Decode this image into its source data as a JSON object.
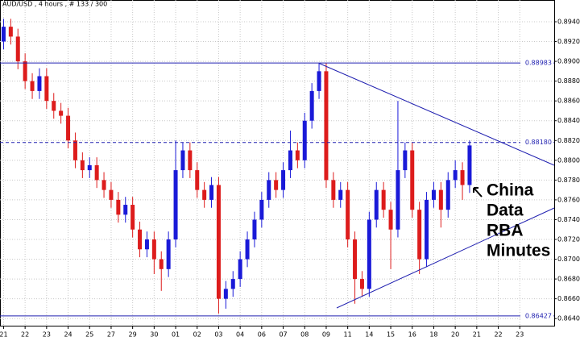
{
  "chart_data": {
    "type": "candlestick",
    "title": "AUD/USD , 4 hours , # 133 / 300",
    "categories": [
      "21",
      null,
      null,
      "22",
      null,
      null,
      "23",
      null,
      null,
      "24",
      null,
      null,
      "25",
      null,
      null,
      "27",
      null,
      null,
      "29",
      null,
      null,
      "30",
      null,
      null,
      "01",
      null,
      null,
      "02",
      null,
      null,
      "03",
      null,
      null,
      "04",
      null,
      null,
      "06",
      null,
      null,
      "07",
      null,
      null,
      "08",
      null,
      null,
      "09",
      null,
      null,
      "11",
      null,
      null,
      "14",
      null,
      null,
      "15",
      null,
      null,
      "16",
      null,
      null,
      "18",
      null,
      null,
      "20",
      null,
      null,
      "21",
      null,
      null,
      "22",
      null,
      null,
      "23",
      null,
      null
    ],
    "open": [
      0.892,
      0.8935,
      0.8925,
      0.89,
      0.888,
      0.887,
      0.8885,
      0.886,
      0.885,
      0.8845,
      0.882,
      0.88,
      0.879,
      0.8795,
      0.878,
      0.877,
      0.876,
      0.8745,
      0.8755,
      0.873,
      0.871,
      0.872,
      0.87,
      0.869,
      0.872,
      0.879,
      0.881,
      0.879,
      0.877,
      0.876,
      0.8775,
      0.866,
      0.867,
      0.868,
      0.87,
      0.872,
      0.874,
      0.876,
      0.878,
      0.877,
      0.879,
      0.881,
      0.88,
      0.884,
      0.887,
      0.889,
      0.878,
      0.876,
      0.877,
      0.872,
      0.868,
      0.867,
      0.874,
      0.877,
      0.875,
      0.873,
      0.879,
      0.881,
      0.875,
      0.87,
      0.876,
      0.877,
      0.875,
      0.878,
      0.879,
      0.8775,
      null,
      null,
      null,
      null,
      null,
      null,
      null,
      null,
      null
    ],
    "high": [
      0.8943,
      0.8943,
      0.8933,
      0.8908,
      0.8888,
      0.8893,
      0.8893,
      0.8868,
      0.8858,
      0.8853,
      0.8828,
      0.8808,
      0.8803,
      0.8803,
      0.8788,
      0.8778,
      0.8768,
      0.8763,
      0.8763,
      0.8738,
      0.8728,
      0.8728,
      0.8708,
      0.8728,
      0.882,
      0.8818,
      0.8818,
      0.8798,
      0.8778,
      0.8783,
      0.8783,
      0.8678,
      0.8688,
      0.8708,
      0.8728,
      0.8748,
      0.8768,
      0.8788,
      0.8788,
      0.8798,
      0.883,
      0.8818,
      0.8848,
      0.8878,
      0.8898,
      0.8898,
      0.8788,
      0.8778,
      0.8778,
      0.8728,
      0.8688,
      0.8748,
      0.8778,
      0.8778,
      0.8758,
      0.886,
      0.8818,
      0.8818,
      0.8758,
      0.8768,
      0.8778,
      0.8778,
      0.8788,
      0.88,
      0.8798,
      0.882,
      null,
      null,
      null,
      null,
      null,
      null,
      null,
      null,
      null
    ],
    "low": [
      0.8912,
      0.8917,
      0.8892,
      0.8872,
      0.8862,
      0.8862,
      0.8852,
      0.8842,
      0.8837,
      0.8812,
      0.8792,
      0.8782,
      0.8782,
      0.8772,
      0.8762,
      0.8752,
      0.8737,
      0.8737,
      0.8722,
      0.8702,
      0.8702,
      0.8685,
      0.8668,
      0.8682,
      0.8712,
      0.8782,
      0.8782,
      0.8762,
      0.8752,
      0.8752,
      0.8645,
      0.865,
      0.8662,
      0.8672,
      0.8692,
      0.8712,
      0.8732,
      0.8752,
      0.8762,
      0.8762,
      0.8782,
      0.8792,
      0.8792,
      0.8832,
      0.8862,
      0.8772,
      0.8752,
      0.8752,
      0.8712,
      0.8655,
      0.8662,
      0.8662,
      0.8732,
      0.8742,
      0.869,
      0.8722,
      0.8782,
      0.8742,
      0.8685,
      0.8692,
      0.8752,
      0.8732,
      0.8742,
      0.8772,
      0.876,
      0.8767,
      null,
      null,
      null,
      null,
      null,
      null,
      null,
      null,
      null
    ],
    "close": [
      0.8935,
      0.8925,
      0.89,
      0.888,
      0.887,
      0.8885,
      0.886,
      0.885,
      0.8845,
      0.882,
      0.88,
      0.879,
      0.8795,
      0.878,
      0.877,
      0.876,
      0.8745,
      0.8755,
      0.873,
      0.871,
      0.872,
      0.87,
      0.869,
      0.872,
      0.879,
      0.881,
      0.879,
      0.877,
      0.876,
      0.8775,
      0.866,
      0.867,
      0.868,
      0.87,
      0.872,
      0.874,
      0.876,
      0.878,
      0.877,
      0.879,
      0.881,
      0.88,
      0.884,
      0.887,
      0.889,
      0.878,
      0.876,
      0.877,
      0.872,
      0.868,
      0.867,
      0.874,
      0.877,
      0.875,
      0.873,
      0.879,
      0.881,
      0.875,
      0.87,
      0.876,
      0.877,
      0.875,
      0.878,
      0.879,
      0.8775,
      0.8815,
      null,
      null,
      null,
      null,
      null,
      null,
      null,
      null,
      null
    ],
    "up_color": "#1a1ad8",
    "down_color": "#dd1c1c",
    "ylim": [
      0.8632,
      0.8962
    ],
    "yticks": [
      {
        "value": 0.864,
        "label": "0.86400"
      },
      {
        "value": 0.866,
        "label": "0.86600"
      },
      {
        "value": 0.868,
        "label": "0.86800"
      },
      {
        "value": 0.87,
        "label": "0.87000"
      },
      {
        "value": 0.872,
        "label": "0.87200"
      },
      {
        "value": 0.874,
        "label": "0.87400"
      },
      {
        "value": 0.876,
        "label": "0.87600"
      },
      {
        "value": 0.878,
        "label": "0.87800"
      },
      {
        "value": 0.88,
        "label": "0.88000"
      },
      {
        "value": 0.882,
        "label": "0.88200"
      },
      {
        "value": 0.884,
        "label": "0.88400"
      },
      {
        "value": 0.886,
        "label": "0.88600"
      },
      {
        "value": 0.888,
        "label": "0.88800"
      },
      {
        "value": 0.89,
        "label": "0.89000"
      },
      {
        "value": 0.892,
        "label": "0.89200"
      },
      {
        "value": 0.894,
        "label": "0.89400"
      }
    ],
    "levels": [
      {
        "value": 0.88983,
        "label": "0.88983",
        "style": "solid"
      },
      {
        "value": 0.8818,
        "label": "0.88180",
        "style": "dashed"
      },
      {
        "value": 0.86427,
        "label": "0.86427",
        "style": "solid"
      }
    ],
    "annotation": [
      "China",
      "Data",
      "RBA",
      "Minutes"
    ],
    "grid": true
  }
}
